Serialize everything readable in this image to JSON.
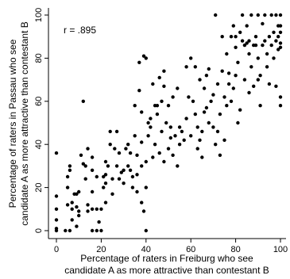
{
  "chart_data": {
    "type": "scatter",
    "title": "",
    "xlabel": [
      "Percentage of raters in Freiburg who see",
      "candidate A as more attractive than contestant B"
    ],
    "ylabel": [
      "Percentage of raters in Passau who see",
      "candidate A as more attractive than contestant B"
    ],
    "annotation": "r = .895",
    "xlim": [
      0,
      100
    ],
    "ylim": [
      0,
      100
    ],
    "xticks": [
      "0",
      "20",
      "40",
      "60",
      "80",
      "100"
    ],
    "yticks": [
      "0",
      "20",
      "40",
      "60",
      "80",
      "100"
    ],
    "grid": false,
    "legend": "none",
    "marker_color": "#000000",
    "series": [
      {
        "points": [
          [
            0,
            0
          ],
          [
            0,
            5
          ],
          [
            0,
            10
          ],
          [
            0,
            16
          ],
          [
            0,
            36
          ],
          [
            0,
            1
          ],
          [
            4,
            0
          ],
          [
            5,
            12
          ],
          [
            5,
            20
          ],
          [
            5,
            25
          ],
          [
            6,
            0
          ],
          [
            6,
            28
          ],
          [
            6,
            30
          ],
          [
            7,
            5
          ],
          [
            7,
            10
          ],
          [
            7,
            13
          ],
          [
            8,
            17
          ],
          [
            9,
            17
          ],
          [
            9,
            11
          ],
          [
            9,
            2
          ],
          [
            10,
            7
          ],
          [
            10,
            18
          ],
          [
            10,
            9
          ],
          [
            11,
            35
          ],
          [
            12,
            31
          ],
          [
            12,
            60
          ],
          [
            13,
            24
          ],
          [
            13,
            30
          ],
          [
            14,
            9
          ],
          [
            14,
            12
          ],
          [
            14,
            38
          ],
          [
            16,
            0
          ],
          [
            16,
            18
          ],
          [
            16,
            28
          ],
          [
            16,
            34
          ],
          [
            16,
            10
          ],
          [
            18,
            10
          ],
          [
            18,
            0
          ],
          [
            18,
            25
          ],
          [
            19,
            4
          ],
          [
            20,
            0
          ],
          [
            20,
            10
          ],
          [
            21,
            25
          ],
          [
            21,
            20
          ],
          [
            22,
            26
          ],
          [
            22,
            32
          ],
          [
            22,
            13
          ],
          [
            22,
            22
          ],
          [
            23,
            30
          ],
          [
            24,
            40
          ],
          [
            24,
            46
          ],
          [
            25,
            17
          ],
          [
            25,
            24
          ],
          [
            26,
            38
          ],
          [
            27,
            46
          ],
          [
            27,
            30
          ],
          [
            28,
            24
          ],
          [
            28,
            36
          ],
          [
            29,
            27
          ],
          [
            30,
            22
          ],
          [
            30,
            28
          ],
          [
            31,
            38
          ],
          [
            32,
            40
          ],
          [
            32,
            30
          ],
          [
            33,
            28
          ],
          [
            33,
            36
          ],
          [
            34,
            25
          ],
          [
            34,
            20
          ],
          [
            35,
            44
          ],
          [
            35,
            58
          ],
          [
            36,
            18
          ],
          [
            36,
            26
          ],
          [
            36,
            35
          ],
          [
            37,
            65
          ],
          [
            37,
            78
          ],
          [
            38,
            13
          ],
          [
            38,
            41
          ],
          [
            38,
            55
          ],
          [
            38,
            30
          ],
          [
            39,
            81
          ],
          [
            39,
            9
          ],
          [
            40,
            80
          ],
          [
            40,
            0
          ],
          [
            40,
            20
          ],
          [
            40,
            32
          ],
          [
            41,
            50
          ],
          [
            41,
            44
          ],
          [
            42,
            52
          ],
          [
            42,
            48
          ],
          [
            43,
            68
          ],
          [
            43,
            34
          ],
          [
            44,
            58
          ],
          [
            44,
            40
          ],
          [
            45,
            58
          ],
          [
            45,
            54
          ],
          [
            46,
            71
          ],
          [
            46,
            36
          ],
          [
            47,
            60
          ],
          [
            47,
            46
          ],
          [
            48,
            74
          ],
          [
            48,
            32
          ],
          [
            48,
            67
          ],
          [
            49,
            50
          ],
          [
            50,
            38
          ],
          [
            50,
            58
          ],
          [
            51,
            48
          ],
          [
            51,
            43
          ],
          [
            52,
            35
          ],
          [
            52,
            62
          ],
          [
            53,
            44
          ],
          [
            54,
            30
          ],
          [
            54,
            66
          ],
          [
            55,
            48
          ],
          [
            55,
            40
          ],
          [
            56,
            46
          ],
          [
            57,
            42
          ],
          [
            58,
            52
          ],
          [
            58,
            76
          ],
          [
            59,
            62
          ],
          [
            60,
            80
          ],
          [
            60,
            44
          ],
          [
            61,
            60
          ],
          [
            62,
            54
          ],
          [
            62,
            76
          ],
          [
            63,
            38
          ],
          [
            63,
            48
          ],
          [
            64,
            42
          ],
          [
            64,
            70
          ],
          [
            65,
            46
          ],
          [
            65,
            34
          ],
          [
            66,
            55
          ],
          [
            66,
            66
          ],
          [
            67,
            72
          ],
          [
            67,
            57
          ],
          [
            68,
            50
          ],
          [
            68,
            75
          ],
          [
            69,
            60
          ],
          [
            70,
            48
          ],
          [
            70,
            63
          ],
          [
            71,
            100
          ],
          [
            71,
            40
          ],
          [
            72,
            46
          ],
          [
            72,
            68
          ],
          [
            73,
            54
          ],
          [
            73,
            35
          ],
          [
            74,
            74
          ],
          [
            74,
            90
          ],
          [
            75,
            62
          ],
          [
            75,
            42
          ],
          [
            76,
            82
          ],
          [
            76,
            58
          ],
          [
            77,
            73
          ],
          [
            77,
            68
          ],
          [
            78,
            90
          ],
          [
            78,
            60
          ],
          [
            79,
            95
          ],
          [
            79,
            66
          ],
          [
            80,
            90
          ],
          [
            80,
            85
          ],
          [
            80,
            72
          ],
          [
            81,
            78
          ],
          [
            81,
            50
          ],
          [
            82,
            92
          ],
          [
            82,
            56
          ],
          [
            83,
            100
          ],
          [
            83,
            88
          ],
          [
            84,
            86
          ],
          [
            84,
            70
          ],
          [
            85,
            87
          ],
          [
            85,
            95
          ],
          [
            86,
            88
          ],
          [
            86,
            82
          ],
          [
            86,
            64
          ],
          [
            87,
            76
          ],
          [
            87,
            100
          ],
          [
            88,
            86
          ],
          [
            88,
            67
          ],
          [
            89,
            90
          ],
          [
            89,
            86
          ],
          [
            90,
            100
          ],
          [
            90,
            80
          ],
          [
            90,
            70
          ],
          [
            91,
            72
          ],
          [
            91,
            58
          ],
          [
            92,
            86
          ],
          [
            92,
            96
          ],
          [
            93,
            100
          ],
          [
            93,
            88
          ],
          [
            94,
            82
          ],
          [
            94,
            76
          ],
          [
            95,
            90
          ],
          [
            95,
            68
          ],
          [
            96,
            100
          ],
          [
            96,
            86
          ],
          [
            97,
            92
          ],
          [
            97,
            80
          ],
          [
            98,
            100
          ],
          [
            98,
            88
          ],
          [
            98,
            67
          ],
          [
            99,
            90
          ],
          [
            99,
            95
          ],
          [
            100,
            100
          ],
          [
            100,
            85
          ],
          [
            100,
            62
          ],
          [
            100,
            58
          ],
          [
            100,
            95
          ],
          [
            100,
            92
          ],
          [
            100,
            87
          ],
          [
            99,
            84
          ]
        ]
      }
    ]
  }
}
